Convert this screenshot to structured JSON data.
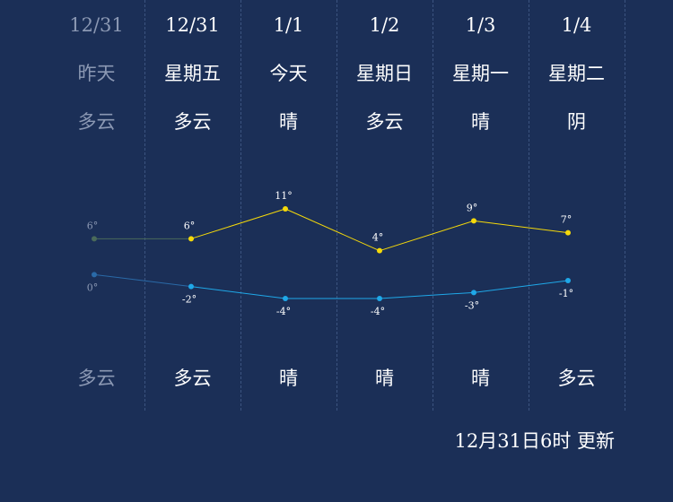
{
  "days": [
    {
      "date": "12/31",
      "weekday": "昨天",
      "day_condition": "多云",
      "night_condition": "多云",
      "past": true
    },
    {
      "date": "12/31",
      "weekday": "星期五",
      "day_condition": "多云",
      "night_condition": "多云",
      "past": false
    },
    {
      "date": "1/1",
      "weekday": "今天",
      "day_condition": "晴",
      "night_condition": "晴",
      "past": false
    },
    {
      "date": "1/2",
      "weekday": "星期日",
      "day_condition": "多云",
      "night_condition": "晴",
      "past": false
    },
    {
      "date": "1/3",
      "weekday": "星期一",
      "day_condition": "晴",
      "night_condition": "晴",
      "past": false
    },
    {
      "date": "1/4",
      "weekday": "星期二",
      "day_condition": "阴",
      "night_condition": "多云",
      "past": false
    }
  ],
  "chart_data": {
    "type": "line",
    "categories": [
      "12/31",
      "12/31",
      "1/1",
      "1/2",
      "1/3",
      "1/4"
    ],
    "series": [
      {
        "values": [
          6,
          6,
          11,
          4,
          9,
          7
        ],
        "labels": [
          "6°",
          "6°",
          "11°",
          "4°",
          "9°",
          "7°"
        ],
        "color": "#f5d90a"
      },
      {
        "values": [
          0,
          -2,
          -4,
          -4,
          -3,
          -1
        ],
        "labels": [
          "0°",
          "-2°",
          "-4°",
          "-4°",
          "-3°",
          "-1°"
        ],
        "color": "#1fa8e8"
      }
    ],
    "past_color": "#4a6a5a",
    "past_low_color": "#2a6aa8",
    "grid": false
  },
  "footer": {
    "update_text": "12月31日6时 更新"
  },
  "colors": {
    "background": "#1b2f57",
    "past_text": "#8b98b3"
  }
}
